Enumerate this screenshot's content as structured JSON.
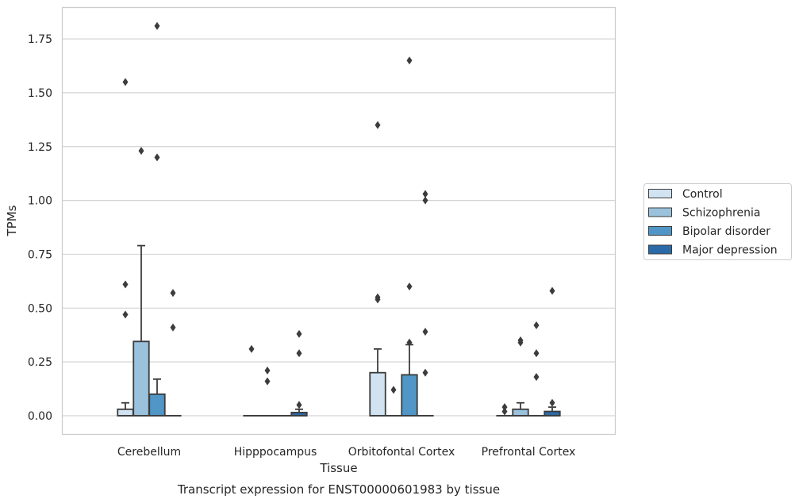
{
  "chart_data": {
    "type": "box",
    "title": "",
    "caption": "Transcript expression for ENST00000601983 by tissue",
    "xlabel": "Tissue",
    "ylabel": "TPMs",
    "ylim": [
      -0.09,
      1.9
    ],
    "yticks": [
      "0.00",
      "0.25",
      "0.50",
      "0.75",
      "1.00",
      "1.25",
      "1.50",
      "1.75"
    ],
    "grid": "horizontal",
    "legend_position": "right",
    "categories": [
      "Cerebellum",
      "Hipppocampus",
      "Orbitofontal Cortex",
      "Prefrontal Cortex"
    ],
    "series": [
      {
        "name": "Control",
        "color": "#d1e2f1",
        "boxes": [
          {
            "q1": 0.0,
            "median": 0.0,
            "q3": 0.03,
            "whisker_low": 0.0,
            "whisker_high": 0.06,
            "outliers": [
              1.55,
              0.61,
              0.47
            ]
          },
          {
            "q1": 0.0,
            "median": 0.0,
            "q3": 0.0,
            "whisker_low": 0.0,
            "whisker_high": 0.0,
            "outliers": [
              0.31
            ]
          },
          {
            "q1": 0.0,
            "median": 0.0,
            "q3": 0.2,
            "whisker_low": 0.0,
            "whisker_high": 0.31,
            "outliers": [
              1.35,
              0.55,
              0.54
            ]
          },
          {
            "q1": 0.0,
            "median": 0.0,
            "q3": 0.0,
            "whisker_low": 0.0,
            "whisker_high": 0.0,
            "outliers": [
              0.04,
              0.02
            ]
          }
        ]
      },
      {
        "name": "Schizophrenia",
        "color": "#9ac2dc",
        "boxes": [
          {
            "q1": 0.0,
            "median": 0.0,
            "q3": 0.345,
            "whisker_low": 0.0,
            "whisker_high": 0.79,
            "outliers": [
              1.23
            ]
          },
          {
            "q1": 0.0,
            "median": 0.0,
            "q3": 0.0,
            "whisker_low": 0.0,
            "whisker_high": 0.0,
            "outliers": [
              0.21,
              0.16
            ]
          },
          {
            "q1": 0.0,
            "median": 0.0,
            "q3": 0.0,
            "whisker_low": 0.0,
            "whisker_high": 0.0,
            "outliers": [
              0.12
            ]
          },
          {
            "q1": 0.0,
            "median": 0.0,
            "q3": 0.03,
            "whisker_low": 0.0,
            "whisker_high": 0.06,
            "outliers": [
              0.35,
              0.34
            ]
          }
        ]
      },
      {
        "name": "Bipolar disorder",
        "color": "#5096c6",
        "boxes": [
          {
            "q1": 0.0,
            "median": 0.0,
            "q3": 0.1,
            "whisker_low": 0.0,
            "whisker_high": 0.17,
            "outliers": [
              1.81,
              1.2
            ]
          },
          {
            "q1": 0.0,
            "median": 0.0,
            "q3": 0.0,
            "whisker_low": 0.0,
            "whisker_high": 0.0,
            "outliers": []
          },
          {
            "q1": 0.0,
            "median": 0.0,
            "q3": 0.19,
            "whisker_low": 0.0,
            "whisker_high": 0.33,
            "outliers": [
              1.65,
              0.6,
              0.34
            ]
          },
          {
            "q1": 0.0,
            "median": 0.0,
            "q3": 0.0,
            "whisker_low": 0.0,
            "whisker_high": 0.0,
            "outliers": [
              0.42,
              0.29,
              0.18
            ]
          }
        ]
      },
      {
        "name": "Major depression",
        "color": "#2a6aa8",
        "boxes": [
          {
            "q1": 0.0,
            "median": 0.0,
            "q3": 0.0,
            "whisker_low": 0.0,
            "whisker_high": 0.0,
            "outliers": [
              0.57,
              0.41
            ]
          },
          {
            "q1": 0.0,
            "median": 0.0,
            "q3": 0.015,
            "whisker_low": 0.0,
            "whisker_high": 0.03,
            "outliers": [
              0.38,
              0.29,
              0.05
            ]
          },
          {
            "q1": 0.0,
            "median": 0.0,
            "q3": 0.0,
            "whisker_low": 0.0,
            "whisker_high": 0.0,
            "outliers": [
              1.03,
              1.0,
              0.39,
              0.2
            ]
          },
          {
            "q1": 0.0,
            "median": 0.0,
            "q3": 0.02,
            "whisker_low": 0.0,
            "whisker_high": 0.04,
            "outliers": [
              0.58,
              0.06
            ]
          }
        ]
      }
    ]
  }
}
